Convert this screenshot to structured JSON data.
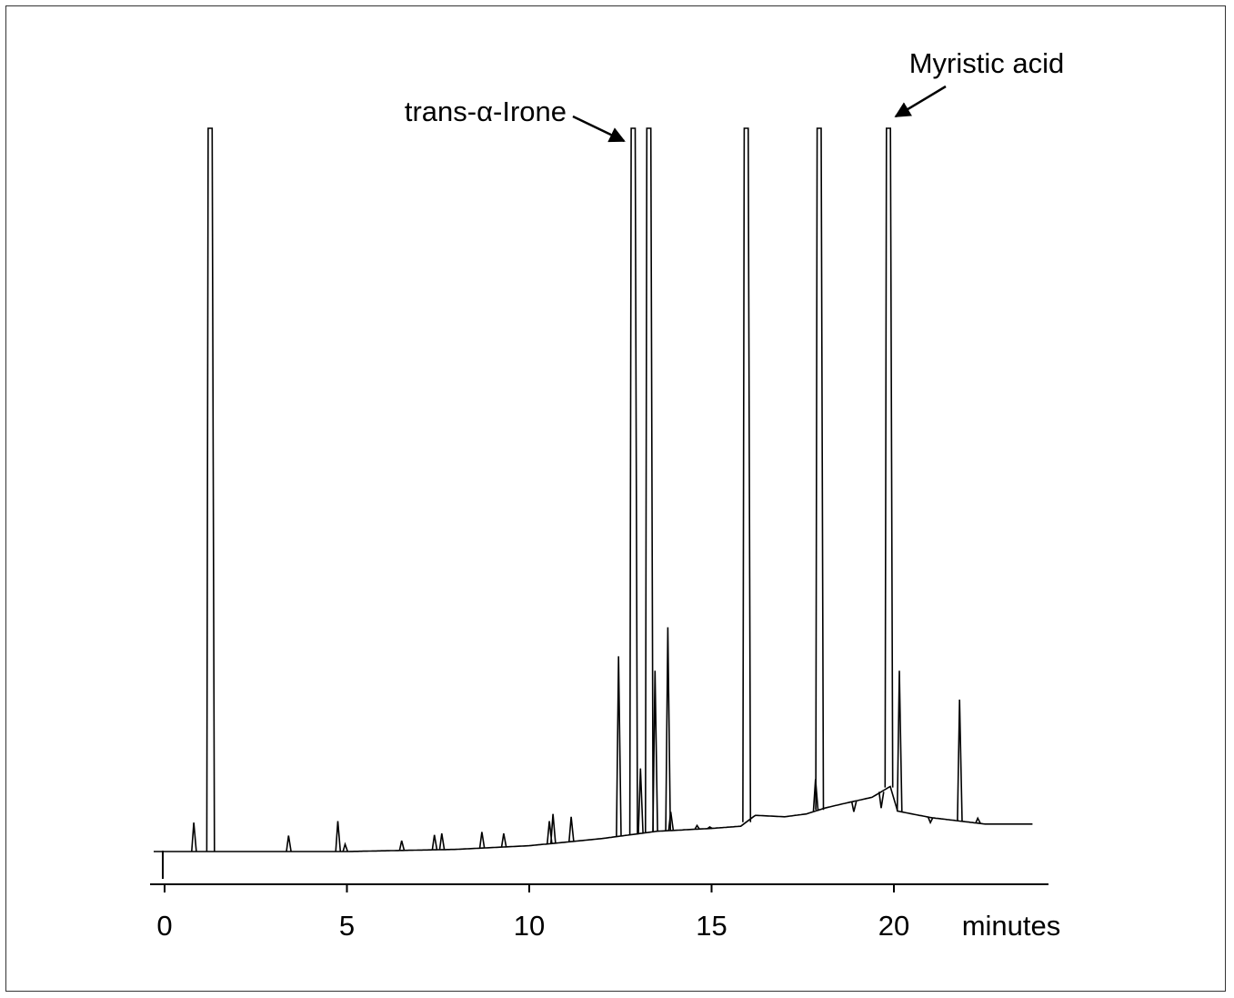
{
  "chart_data": {
    "type": "line",
    "title": "",
    "xlabel": "",
    "ylabel": "",
    "x_unit_label": "minutes",
    "xlim": [
      0,
      24
    ],
    "ylim": [
      0,
      100
    ],
    "grid": false,
    "x_ticks": [
      0,
      5,
      10,
      15,
      20
    ],
    "x_tick_labels": [
      "0",
      "5",
      "10",
      "15",
      "20"
    ],
    "baseline": [
      [
        -0.3,
        0
      ],
      [
        2,
        0
      ],
      [
        5,
        0
      ],
      [
        8,
        0.3
      ],
      [
        10,
        0.8
      ],
      [
        12,
        1.8
      ],
      [
        13.5,
        2.8
      ],
      [
        15,
        3.2
      ],
      [
        15.8,
        3.5
      ],
      [
        16.2,
        5.0
      ],
      [
        17,
        4.8
      ],
      [
        17.6,
        5.2
      ],
      [
        18.1,
        6.0
      ],
      [
        18.6,
        6.6
      ],
      [
        19.4,
        7.5
      ],
      [
        19.9,
        9.0
      ],
      [
        20.1,
        5.6
      ],
      [
        21,
        4.7
      ],
      [
        22.5,
        3.8
      ],
      [
        23.8,
        3.8
      ]
    ],
    "peaks": [
      {
        "x": 0.8,
        "y": 4.0
      },
      {
        "x": 1.25,
        "y": 100,
        "clipped": true
      },
      {
        "x": 3.4,
        "y": 2.2
      },
      {
        "x": 4.75,
        "y": 4.2
      },
      {
        "x": 4.95,
        "y": 1.0
      },
      {
        "x": 6.5,
        "y": 1.5
      },
      {
        "x": 7.4,
        "y": 2.3
      },
      {
        "x": 7.6,
        "y": 2.5
      },
      {
        "x": 8.7,
        "y": 2.7
      },
      {
        "x": 9.3,
        "y": 2.5
      },
      {
        "x": 10.55,
        "y": 4.2
      },
      {
        "x": 10.65,
        "y": 5.2
      },
      {
        "x": 11.15,
        "y": 4.8
      },
      {
        "x": 12.45,
        "y": 27
      },
      {
        "x": 12.85,
        "y": 100,
        "clipped": true
      },
      {
        "x": 13.05,
        "y": 11.5
      },
      {
        "x": 13.28,
        "y": 100,
        "clipped": true
      },
      {
        "x": 13.45,
        "y": 25
      },
      {
        "x": 13.8,
        "y": 31
      },
      {
        "x": 13.88,
        "y": 5.5
      },
      {
        "x": 14.6,
        "y": 3.6
      },
      {
        "x": 14.95,
        "y": 3.4
      },
      {
        "x": 15.95,
        "y": 100,
        "clipped": true
      },
      {
        "x": 17.85,
        "y": 10.0
      },
      {
        "x": 17.95,
        "y": 100,
        "clipped": true
      },
      {
        "x": 18.9,
        "y": 5.5
      },
      {
        "x": 19.65,
        "y": 6.0
      },
      {
        "x": 19.85,
        "y": 100,
        "clipped": true
      },
      {
        "x": 20.15,
        "y": 25
      },
      {
        "x": 21.0,
        "y": 4.0
      },
      {
        "x": 21.8,
        "y": 21
      },
      {
        "x": 22.3,
        "y": 4.6
      }
    ],
    "annotations": [
      {
        "text": "trans-α-Irone",
        "target_x": 12.85
      },
      {
        "text": "Myristic acid",
        "target_x": 19.85
      }
    ]
  }
}
